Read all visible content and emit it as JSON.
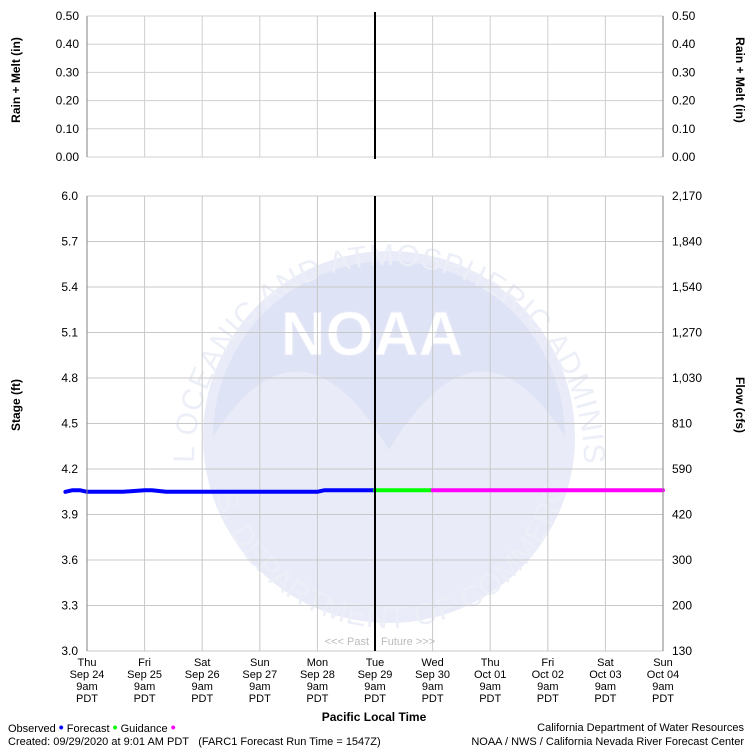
{
  "chart_data": {
    "type": "line",
    "top_panel": {
      "ylabel_left": "Rain + Melt (in)",
      "ylabel_right": "Rain + Melt (in)",
      "yticks": [
        "0.50",
        "0.40",
        "0.30",
        "0.20",
        "0.10",
        "0.00"
      ],
      "ylim": [
        0,
        0.5
      ]
    },
    "main_panel": {
      "ylabel_left": "Stage (ft)",
      "ylabel_right": "Flow (cfs)",
      "ylim": [
        3.0,
        6.0
      ],
      "yticks_left": [
        "6.0",
        "5.7",
        "5.4",
        "5.1",
        "4.8",
        "4.5",
        "4.2",
        "3.9",
        "3.6",
        "3.3",
        "3.0"
      ],
      "yticks_right": [
        "2,170",
        "1,840",
        "1,540",
        "1,270",
        "1,030",
        "810",
        "590",
        "420",
        "300",
        "200",
        "130"
      ],
      "past_label": "<<< Past",
      "future_label": "Future >>>"
    },
    "xlabel": "Pacific Local Time",
    "x_ticks": [
      {
        "day": "Thu",
        "date": "Sep 24",
        "time": "9am",
        "tz": "PDT"
      },
      {
        "day": "Fri",
        "date": "Sep 25",
        "time": "9am",
        "tz": "PDT"
      },
      {
        "day": "Sat",
        "date": "Sep 26",
        "time": "9am",
        "tz": "PDT"
      },
      {
        "day": "Sun",
        "date": "Sep 27",
        "time": "9am",
        "tz": "PDT"
      },
      {
        "day": "Mon",
        "date": "Sep 28",
        "time": "9am",
        "tz": "PDT"
      },
      {
        "day": "Tue",
        "date": "Sep 29",
        "time": "9am",
        "tz": "PDT"
      },
      {
        "day": "Wed",
        "date": "Sep 30",
        "time": "9am",
        "tz": "PDT"
      },
      {
        "day": "Thu",
        "date": "Oct 01",
        "time": "9am",
        "tz": "PDT"
      },
      {
        "day": "Fri",
        "date": "Oct 02",
        "time": "9am",
        "tz": "PDT"
      },
      {
        "day": "Sat",
        "date": "Oct 03",
        "time": "9am",
        "tz": "PDT"
      },
      {
        "day": "Sun",
        "date": "Oct 04",
        "time": "9am",
        "tz": "PDT"
      }
    ],
    "now_marker": "Sep 29 9am PDT",
    "series": [
      {
        "name": "Observed",
        "color": "#0000ff",
        "x": [
          "Sep 24 00:00",
          "Sep 24 03:00",
          "Sep 24 06:00",
          "Sep 24 09:00",
          "Sep 24 12:00",
          "Sep 25 00:00",
          "Sep 25 09:00",
          "Sep 25 12:00",
          "Sep 25 18:00",
          "Sep 26 00:00",
          "Sep 26 12:00",
          "Sep 27 00:00",
          "Sep 27 12:00",
          "Sep 28 00:00",
          "Sep 28 09:00",
          "Sep 28 12:00",
          "Sep 29 00:00",
          "Sep 29 09:00"
        ],
        "values": [
          4.05,
          4.06,
          4.06,
          4.05,
          4.05,
          4.05,
          4.06,
          4.06,
          4.05,
          4.05,
          4.05,
          4.05,
          4.05,
          4.05,
          4.05,
          4.06,
          4.06,
          4.06
        ]
      },
      {
        "name": "Forecast",
        "color": "#00ff00",
        "x": [
          "Sep 29 09:00",
          "Sep 30 09:00"
        ],
        "values": [
          4.06,
          4.06
        ]
      },
      {
        "name": "Guidance",
        "color": "#ff00ff",
        "x": [
          "Sep 30 09:00",
          "Oct 04 09:00"
        ],
        "values": [
          4.06,
          4.06
        ]
      }
    ],
    "grid": true
  },
  "legend": {
    "observed": "Observed",
    "forecast": "Forecast",
    "guidance": "Guidance",
    "dot": "•",
    "observed_color": "#0000ff",
    "forecast_color": "#00ff00",
    "guidance_color": "#ff00ff"
  },
  "watermark": {
    "logo_text": "NOAA",
    "ring_top": "NATIONAL OCEANIC AND ATMOSPHERIC ADMINISTRATION",
    "ring_bottom": "U.S. DEPARTMENT OF COMMERCE"
  },
  "footer": {
    "created": "Created: 09/29/2020 at 9:01 AM PDT",
    "run": "(FARC1 Forecast Run Time = 1547Z)",
    "agency1": "California Department of Water Resources",
    "agency2": "NOAA / NWS / California Nevada River Forecast Center"
  }
}
